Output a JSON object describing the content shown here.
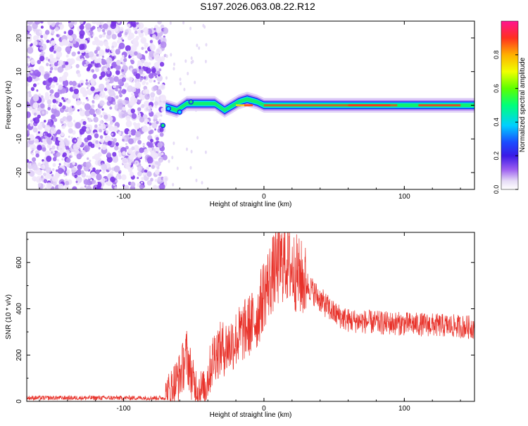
{
  "title": "S197.2026.063.08.22.R12",
  "chart_data": [
    {
      "id": "spectrogram",
      "type": "heatmap",
      "xlabel": "Height of straight line (km)",
      "ylabel": "Frequency (Hz)",
      "xlim": [
        -169,
        150
      ],
      "ylim": [
        -25,
        25
      ],
      "xticks": [
        -100,
        0,
        100
      ],
      "yticks": [
        -20,
        -10,
        0,
        10,
        20
      ],
      "colorbar": {
        "label": "Normalized spectral amplitude",
        "range": [
          0,
          1
        ],
        "ticks": [
          "0.0",
          "0.2",
          "0.4",
          "0.6",
          "0.8"
        ],
        "colormap": "rainbow"
      },
      "noise_region_x": [
        -169,
        -70
      ],
      "signal_track": [
        {
          "x": -70,
          "f": -0.5
        },
        {
          "x": -62,
          "f": -1.5
        },
        {
          "x": -55,
          "f": 0.5
        },
        {
          "x": -45,
          "f": 0.5
        },
        {
          "x": -35,
          "f": 0.5
        },
        {
          "x": -28,
          "f": -1.5
        },
        {
          "x": -18,
          "f": 1.0
        },
        {
          "x": -12,
          "f": 1.8
        },
        {
          "x": -5,
          "f": 1.0
        },
        {
          "x": 0,
          "f": 0.0
        },
        {
          "x": 50,
          "f": 0.0
        },
        {
          "x": 100,
          "f": 0.0
        },
        {
          "x": 150,
          "f": 0.0
        }
      ]
    },
    {
      "id": "snr",
      "type": "line",
      "xlabel": "Height of straight line (km)",
      "ylabel": "SNR (10 * v/v)",
      "xlim": [
        -169,
        150
      ],
      "ylim": [
        0,
        730
      ],
      "xticks": [
        -100,
        0,
        100
      ],
      "yticks": [
        0,
        200,
        400,
        600
      ],
      "color": "#e8322a",
      "envelope": [
        {
          "x": -169,
          "y": 15
        },
        {
          "x": -70,
          "y": 15
        },
        {
          "x": -60,
          "y": 110
        },
        {
          "x": -55,
          "y": 200
        },
        {
          "x": -50,
          "y": 70
        },
        {
          "x": -43,
          "y": 40
        },
        {
          "x": -35,
          "y": 210
        },
        {
          "x": -25,
          "y": 240
        },
        {
          "x": -15,
          "y": 300
        },
        {
          "x": -5,
          "y": 360
        },
        {
          "x": 0,
          "y": 470
        },
        {
          "x": 8,
          "y": 570
        },
        {
          "x": 15,
          "y": 610
        },
        {
          "x": 22,
          "y": 560
        },
        {
          "x": 30,
          "y": 510
        },
        {
          "x": 40,
          "y": 440
        },
        {
          "x": 50,
          "y": 380
        },
        {
          "x": 60,
          "y": 350
        },
        {
          "x": 80,
          "y": 340
        },
        {
          "x": 100,
          "y": 335
        },
        {
          "x": 120,
          "y": 330
        },
        {
          "x": 150,
          "y": 320
        }
      ]
    }
  ]
}
